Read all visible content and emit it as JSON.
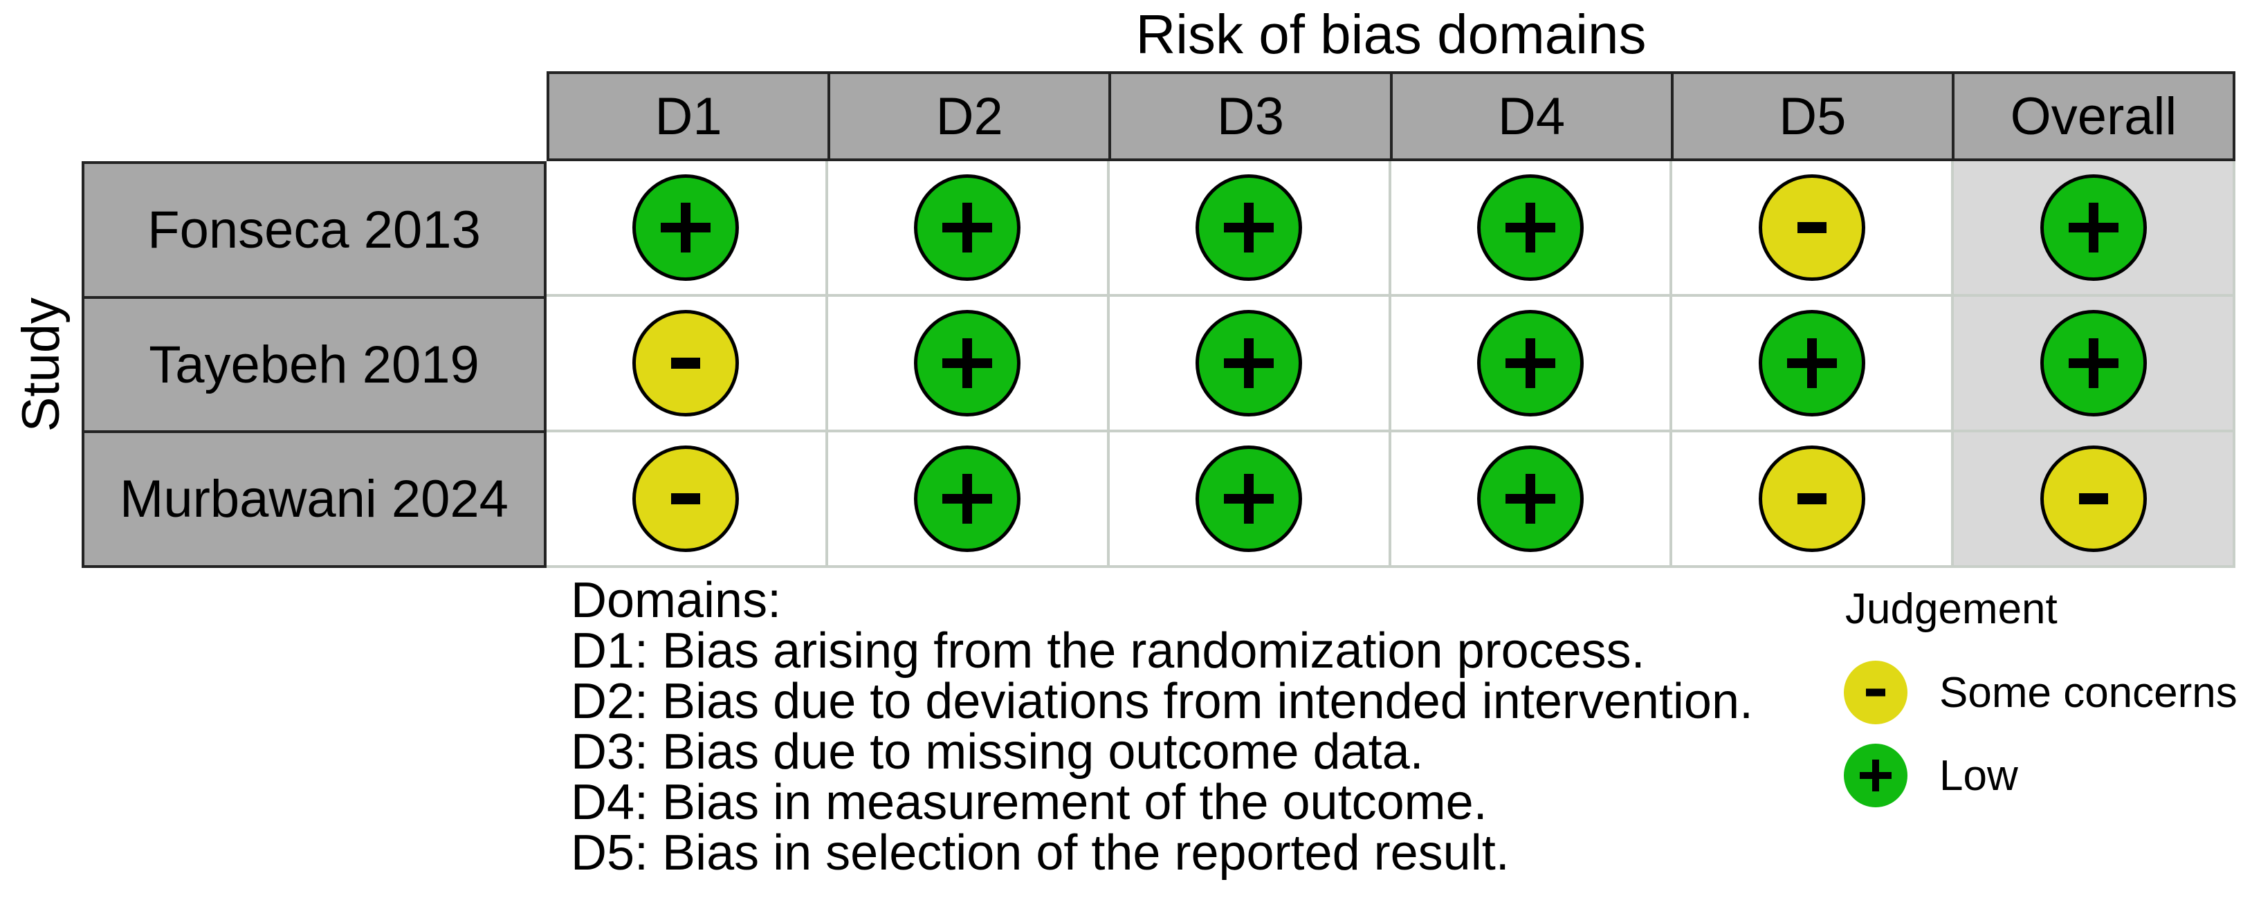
{
  "figure": {
    "title": "Risk of bias domains",
    "row_axis_label": "Study",
    "legend_title": "Judgement"
  },
  "chart_data": {
    "type": "table",
    "subtype": "risk_of_bias_traffic_light_plot",
    "title": "Risk of bias domains",
    "row_axis_label": "Study",
    "columns": [
      "D1",
      "D2",
      "D3",
      "D4",
      "D5",
      "Overall"
    ],
    "rows": [
      {
        "study": "Fonseca 2013",
        "judgements": [
          "low",
          "low",
          "low",
          "low",
          "some-concerns",
          "low"
        ]
      },
      {
        "study": "Tayebeh 2019",
        "judgements": [
          "some-concerns",
          "low",
          "low",
          "low",
          "low",
          "low"
        ]
      },
      {
        "study": "Murbawani 2024",
        "judgements": [
          "some-concerns",
          "low",
          "low",
          "low",
          "some-concerns",
          "some-concerns"
        ]
      }
    ],
    "judgement_styles": {
      "low": {
        "symbol": "+",
        "label": "Low",
        "color": "#10ba10"
      },
      "some-concerns": {
        "symbol": "-",
        "label": "Some concerns",
        "color": "#e0d916"
      }
    },
    "footnotes": [
      "Domains:",
      "D1: Bias arising from the randomization process.",
      "D2: Bias due to deviations from intended intervention.",
      "D3: Bias due to missing outcome data.",
      "D4: Bias in measurement of the outcome.",
      "D5: Bias in selection of the reported result."
    ],
    "legend": {
      "title": "Judgement",
      "position": "bottom-right",
      "items": [
        {
          "label": "Some concerns",
          "judgement": "some-concerns",
          "symbol": "-"
        },
        {
          "label": "Low",
          "judgement": "low",
          "symbol": "+"
        }
      ]
    },
    "layout": {
      "grid_on": true,
      "header_fill": "#a8a8a8",
      "overall_column_fill": "#d9d9d9",
      "grid_line_color": "#c8cfc8",
      "table_border_color": "#232323",
      "background": "#ffffff"
    }
  }
}
